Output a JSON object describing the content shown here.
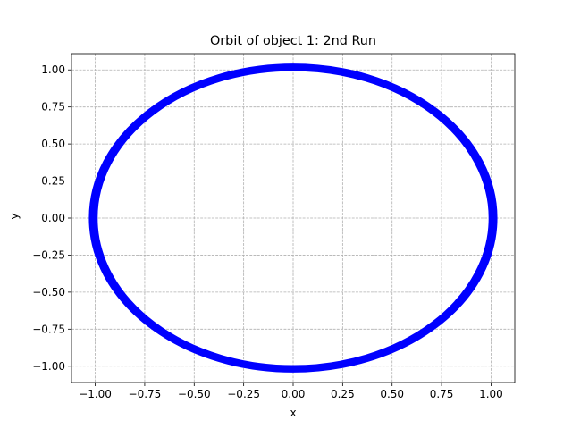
{
  "chart_data": {
    "type": "line",
    "title": "Orbit of object 1: 2nd Run",
    "xlabel": "x",
    "ylabel": "y",
    "xlim": [
      -1.12,
      1.12
    ],
    "ylim": [
      -1.11,
      1.11
    ],
    "grid": true,
    "grid_style": "dashed",
    "xticks": [
      -1.0,
      -0.75,
      -0.5,
      -0.25,
      0.0,
      0.25,
      0.5,
      0.75,
      1.0
    ],
    "xtick_labels": [
      "−1.00",
      "−0.75",
      "−0.50",
      "−0.25",
      "0.00",
      "0.25",
      "0.50",
      "0.75",
      "1.00"
    ],
    "yticks": [
      1.0,
      0.75,
      0.5,
      0.25,
      0.0,
      -0.25,
      -0.5,
      -0.75,
      -1.0
    ],
    "ytick_labels": [
      "1.00",
      "0.75",
      "0.50",
      "0.25",
      "0.00",
      "−0.25",
      "−0.50",
      "−0.75",
      "−1.00"
    ],
    "series": [
      {
        "color": "#0000ff",
        "shape": "closed elliptical orbit centred at the origin, drawn as a thick band",
        "x_range": [
          -1.01,
          1.01
        ],
        "y_range": [
          -1.02,
          1.02
        ],
        "inner_semi_axes": [
          0.99,
          0.995
        ],
        "outer_semi_axes": [
          1.03,
          1.04
        ]
      }
    ]
  }
}
